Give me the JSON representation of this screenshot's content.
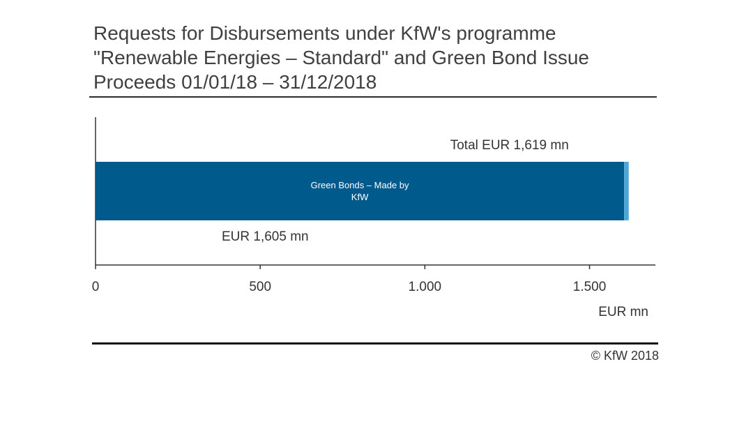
{
  "title_lines": [
    "Requests for Disbursements under KfW's programme",
    "\"Renewable Energies – Standard\" and Green Bond Issue",
    "Proceeds 01/01/18 – 31/12/2018"
  ],
  "footer": {
    "copyright": "© KfW 2018"
  },
  "colors": {
    "bar_main": "#005a8c",
    "bar_remainder": "#4ea6d6",
    "axis": "#333333",
    "rules": "#1f1f1f"
  },
  "chart_data": {
    "type": "bar",
    "orientation": "horizontal",
    "stacked": true,
    "title": "Requests for Disbursements under KfW's programme \"Renewable Energies – Standard\" and Green Bond Issue Proceeds 01/01/18 – 31/12/2018",
    "xlabel": "EUR mn",
    "ylabel": "",
    "xlim": [
      0,
      1700
    ],
    "x_ticks": [
      0,
      500,
      1000,
      1500
    ],
    "x_tick_labels": [
      "0",
      "500",
      "1.000",
      "1.500"
    ],
    "grid": false,
    "legend": "none",
    "series": [
      {
        "name": "",
        "segment_label_lines": [
          "Green Bonds – Made by",
          "KfW"
        ],
        "value": 1605,
        "color": "#005a8c"
      },
      {
        "name": "",
        "value": 14,
        "color": "#4ea6d6"
      }
    ],
    "annotations": {
      "total": "Total EUR 1,619 mn",
      "green_bonds": "EUR 1,605 mn"
    }
  }
}
